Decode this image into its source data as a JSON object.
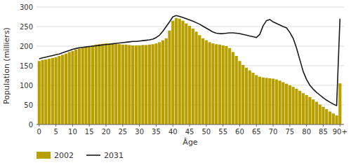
{
  "chart_data": {
    "type": "bar",
    "x_label": "Âge",
    "y_label": "Population (milliers)",
    "x": [
      0,
      1,
      2,
      3,
      4,
      5,
      6,
      7,
      8,
      9,
      10,
      11,
      12,
      13,
      14,
      15,
      16,
      17,
      18,
      19,
      20,
      21,
      22,
      23,
      24,
      25,
      26,
      27,
      28,
      29,
      30,
      31,
      32,
      33,
      34,
      35,
      36,
      37,
      38,
      39,
      40,
      41,
      42,
      43,
      44,
      45,
      46,
      47,
      48,
      49,
      50,
      51,
      52,
      53,
      54,
      55,
      56,
      57,
      58,
      59,
      60,
      61,
      62,
      63,
      64,
      65,
      66,
      67,
      68,
      69,
      70,
      71,
      72,
      73,
      74,
      75,
      76,
      77,
      78,
      79,
      80,
      81,
      82,
      83,
      84,
      85,
      86,
      87,
      88,
      89,
      90
    ],
    "series": [
      {
        "name": "2002",
        "type": "bar",
        "color": "#B8A000",
        "values": [
          162,
          165,
          166,
          168,
          170,
          172,
          175,
          178,
          181,
          185,
          188,
          191,
          194,
          196,
          198,
          200,
          202,
          204,
          205,
          206,
          207,
          207,
          207,
          206,
          205,
          204,
          204,
          203,
          202,
          202,
          202,
          203,
          203,
          204,
          205,
          207,
          210,
          215,
          220,
          240,
          265,
          272,
          270,
          265,
          258,
          252,
          245,
          237,
          228,
          220,
          215,
          210,
          207,
          205,
          204,
          202,
          200,
          195,
          185,
          175,
          162,
          152,
          145,
          138,
          132,
          126,
          122,
          120,
          119,
          118,
          117,
          115,
          112,
          108,
          104,
          100,
          96,
          91,
          86,
          80,
          75,
          70,
          64,
          58,
          51,
          45,
          39,
          33,
          28,
          23,
          105
        ]
      },
      {
        "name": "2031",
        "type": "line",
        "color": "#1a1a1a",
        "values": [
          168,
          170,
          172,
          174,
          176,
          178,
          180,
          183,
          186,
          189,
          192,
          194,
          196,
          197,
          198,
          199,
          200,
          201,
          202,
          203,
          204,
          205,
          206,
          207,
          208,
          209,
          210,
          211,
          212,
          212,
          213,
          214,
          215,
          216,
          218,
          222,
          228,
          238,
          250,
          262,
          275,
          278,
          276,
          273,
          270,
          267,
          264,
          260,
          256,
          251,
          246,
          241,
          236,
          233,
          232,
          232,
          233,
          234,
          234,
          233,
          232,
          230,
          228,
          226,
          224,
          222,
          230,
          252,
          265,
          268,
          262,
          258,
          254,
          250,
          247,
          235,
          220,
          195,
          165,
          135,
          115,
          100,
          90,
          82,
          75,
          68,
          62,
          57,
          52,
          48,
          270
        ]
      }
    ],
    "xlim": [
      -0.8,
      91.2
    ],
    "xticks": [
      0,
      5,
      10,
      15,
      20,
      25,
      30,
      35,
      40,
      45,
      50,
      55,
      60,
      65,
      70,
      75,
      80,
      85,
      {
        "value": 90,
        "label": "90+"
      }
    ],
    "ylim": [
      0,
      300
    ],
    "yticks": [
      0,
      50,
      100,
      150,
      200,
      250,
      300
    ],
    "grid": true,
    "legend": "bottom"
  }
}
